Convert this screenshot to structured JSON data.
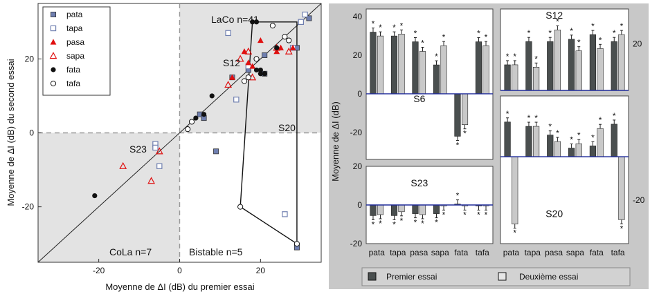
{
  "colors": {
    "quad_shade": "#e3e3e3",
    "right_bg": "#c8c8c8",
    "premier": "#4a4f4f",
    "deuxieme": "#c9c9c9",
    "marker_blue": "#6f7fb0",
    "marker_red": "#e01010",
    "zero_line": "#1f2a9a"
  },
  "chart_data": [
    {
      "type": "scatter",
      "xlabel": "Moyenne de ΔI (dB) du premier essai",
      "ylabel": "Moyenne de ΔI (dB) du second essai",
      "xlim": [
        -35,
        35
      ],
      "ylim": [
        -35,
        35
      ],
      "xticks": [
        "-20",
        "0",
        "20"
      ],
      "yticks": [
        "20",
        "0",
        "-20"
      ],
      "grid": false,
      "legend_position": "top-left",
      "annotations": {
        "top_right": "LaCo n=41",
        "bottom_left": "CoLa n=7",
        "bottom_mid": "Bistable n=5",
        "s12": "S12",
        "s20": "S20",
        "s23": "S23"
      },
      "series": [
        {
          "name": "pata",
          "marker": "filled-square",
          "points": [
            [
              32,
              31
            ],
            [
              30,
              30
            ],
            [
              29,
              23
            ],
            [
              21,
              21
            ],
            [
              5,
              5
            ],
            [
              6,
              4
            ],
            [
              13,
              15
            ],
            [
              9,
              -5
            ],
            [
              29,
              -31
            ],
            [
              -6,
              -4
            ],
            [
              21,
              16
            ],
            [
              17,
              17
            ]
          ]
        },
        {
          "name": "tapa",
          "marker": "open-square",
          "points": [
            [
              31,
              32
            ],
            [
              30,
              30
            ],
            [
              28,
              23
            ],
            [
              17,
              18
            ],
            [
              14,
              9
            ],
            [
              12,
              27
            ],
            [
              -5,
              -9
            ],
            [
              -6,
              -3
            ],
            [
              -6,
              -4
            ],
            [
              26,
              -22
            ]
          ]
        },
        {
          "name": "pasa",
          "marker": "filled-triangle",
          "points": [
            [
              20,
              25
            ],
            [
              24,
              22
            ],
            [
              25,
              23
            ],
            [
              17,
              19
            ],
            [
              18,
              18
            ],
            [
              13,
              15
            ],
            [
              16,
              22
            ],
            [
              28,
              23
            ]
          ]
        },
        {
          "name": "sapa",
          "marker": "open-triangle",
          "points": [
            [
              17,
              22
            ],
            [
              15,
              20
            ],
            [
              27,
              22
            ],
            [
              18,
              15
            ],
            [
              12,
              13
            ],
            [
              24,
              23
            ],
            [
              -14,
              -9
            ],
            [
              -7,
              -13
            ],
            [
              -5,
              -5
            ]
          ]
        },
        {
          "name": "fata",
          "marker": "filled-circle",
          "points": [
            [
              18,
              30
            ],
            [
              19,
              30
            ],
            [
              24,
              23
            ],
            [
              20,
              16
            ],
            [
              21,
              16
            ],
            [
              20,
              17
            ],
            [
              19,
              17
            ],
            [
              8,
              10
            ],
            [
              4,
              4
            ],
            [
              3,
              3
            ],
            [
              -21,
              -17
            ],
            [
              6,
              5
            ]
          ]
        },
        {
          "name": "tafa",
          "marker": "open-circle",
          "points": [
            [
              23,
              29
            ],
            [
              26,
              26
            ],
            [
              27,
              25
            ],
            [
              17,
              15
            ],
            [
              16,
              14
            ],
            [
              3,
              3
            ],
            [
              2,
              1
            ],
            [
              15,
              -20
            ],
            [
              29,
              -30
            ],
            [
              19,
              20
            ]
          ]
        }
      ]
    },
    {
      "type": "bar",
      "title": "S6",
      "categories": [
        "pata",
        "tapa",
        "pasa",
        "sapa",
        "fata",
        "tafa"
      ],
      "series": [
        {
          "name": "Premier essai",
          "values": [
            32,
            30,
            27,
            15,
            -22,
            27
          ]
        },
        {
          "name": "Deuxième essai",
          "values": [
            30,
            31,
            22,
            25,
            -16,
            25
          ]
        }
      ],
      "ylim": [
        -34,
        44
      ],
      "yticks": [
        "40",
        "20",
        "0",
        "-20"
      ],
      "ylabel": "Moyenne de ΔI (dB)"
    },
    {
      "type": "bar",
      "title": "S12",
      "categories": [
        "pata",
        "tapa",
        "pasa",
        "sapa",
        "fata",
        "tafa"
      ],
      "series": [
        {
          "name": "Premier essai",
          "values": [
            11,
            21,
            21,
            22,
            24,
            21
          ]
        },
        {
          "name": "Deuxième essai",
          "values": [
            11,
            10,
            26,
            17,
            18,
            24
          ]
        }
      ],
      "ylim": [
        0,
        35
      ],
      "yticks": [
        "20"
      ]
    },
    {
      "type": "bar",
      "title": "S23",
      "categories": [
        "pata",
        "tapa",
        "pasa",
        "sapa",
        "fata",
        "tafa"
      ],
      "series": [
        {
          "name": "Premier essai",
          "values": [
            -5.5,
            -5.5,
            -4.5,
            -4.5,
            0.5,
            -0.5
          ]
        },
        {
          "name": "Deuxième essai",
          "values": [
            -5,
            -3.5,
            -5,
            -0.5,
            -0.5,
            -0.5
          ]
        }
      ],
      "ylim": [
        -20,
        20
      ],
      "yticks": [
        "20",
        "0",
        "-20"
      ]
    },
    {
      "type": "bar",
      "title": "S20",
      "categories": [
        "pata",
        "tapa",
        "pasa",
        "sapa",
        "fata",
        "tafa"
      ],
      "series": [
        {
          "name": "Premier essai",
          "values": [
            16,
            14,
            10,
            4,
            5,
            15
          ]
        },
        {
          "name": "Deuxième essai",
          "values": [
            -31,
            14,
            7,
            6,
            13,
            -29
          ]
        }
      ],
      "ylim": [
        -40,
        28
      ],
      "yticks": [
        "-20"
      ]
    }
  ],
  "shared": {
    "xcategories": [
      "pata",
      "tapa",
      "pasa",
      "sapa",
      "fata",
      "tafa"
    ],
    "legend": [
      "Premier essai",
      "Deuxième essai"
    ],
    "ylabel": "Moyenne de ΔI (dB)"
  }
}
